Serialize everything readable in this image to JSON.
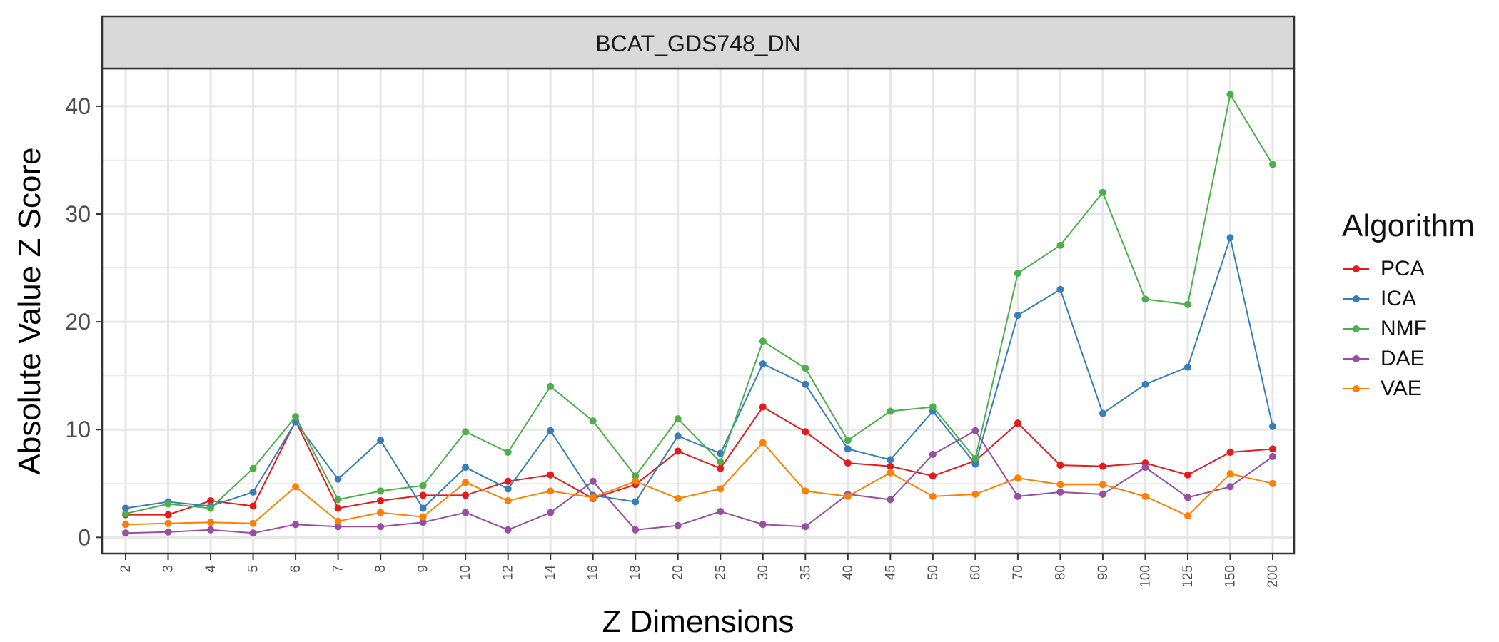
{
  "chart_data": {
    "type": "line",
    "facet_title": "BCAT_GDS748_DN",
    "xlabel": "Z Dimensions",
    "ylabel": "Absolute Value Z Score",
    "categories": [
      "2",
      "3",
      "4",
      "5",
      "6",
      "7",
      "8",
      "9",
      "10",
      "12",
      "14",
      "16",
      "18",
      "20",
      "25",
      "30",
      "35",
      "40",
      "45",
      "50",
      "60",
      "70",
      "80",
      "90",
      "100",
      "125",
      "150",
      "200"
    ],
    "ylim": [
      -1.5,
      43.5
    ],
    "yticks": [
      0,
      10,
      20,
      30,
      40
    ],
    "grid": true,
    "legend": {
      "title": "Algorithm",
      "placement": "right"
    },
    "series": [
      {
        "name": "PCA",
        "color": "#e41a1c",
        "values": [
          2.1,
          2.1,
          3.4,
          2.9,
          10.8,
          2.7,
          3.4,
          3.9,
          3.9,
          5.2,
          5.8,
          3.6,
          4.9,
          8.0,
          6.4,
          12.1,
          9.8,
          6.9,
          6.6,
          5.7,
          7.1,
          10.6,
          6.7,
          6.6,
          6.9,
          5.8,
          7.9,
          8.2
        ]
      },
      {
        "name": "ICA",
        "color": "#377eb8",
        "values": [
          2.7,
          3.3,
          2.9,
          4.2,
          10.7,
          5.4,
          9.0,
          2.7,
          6.5,
          4.5,
          9.9,
          3.9,
          3.3,
          9.4,
          7.8,
          16.1,
          14.2,
          8.2,
          7.2,
          11.7,
          6.8,
          20.6,
          23.0,
          11.5,
          14.2,
          15.8,
          27.8,
          10.3
        ]
      },
      {
        "name": "NMF",
        "color": "#4daf4a",
        "values": [
          2.2,
          3.1,
          2.7,
          6.4,
          11.2,
          3.5,
          4.3,
          4.8,
          9.8,
          7.9,
          14.0,
          10.8,
          5.7,
          11.0,
          7.0,
          18.2,
          15.7,
          9.0,
          11.7,
          12.1,
          7.3,
          24.5,
          27.1,
          32.0,
          22.1,
          21.6,
          41.1,
          34.6
        ]
      },
      {
        "name": "DAE",
        "color": "#984ea3",
        "values": [
          0.4,
          0.5,
          0.7,
          0.4,
          1.2,
          1.0,
          1.0,
          1.4,
          2.3,
          0.7,
          2.3,
          5.2,
          0.7,
          1.1,
          2.4,
          1.2,
          1.0,
          4.0,
          3.5,
          7.7,
          9.9,
          3.8,
          4.2,
          4.0,
          6.5,
          3.7,
          4.7,
          7.5
        ]
      },
      {
        "name": "VAE",
        "color": "#ff7f00",
        "values": [
          1.2,
          1.3,
          1.4,
          1.3,
          4.7,
          1.5,
          2.3,
          1.9,
          5.1,
          3.4,
          4.3,
          3.7,
          5.2,
          3.6,
          4.5,
          8.8,
          4.3,
          3.8,
          6.0,
          3.8,
          4.0,
          5.5,
          4.9,
          4.9,
          3.8,
          2.0,
          5.9,
          5.0
        ]
      }
    ]
  }
}
